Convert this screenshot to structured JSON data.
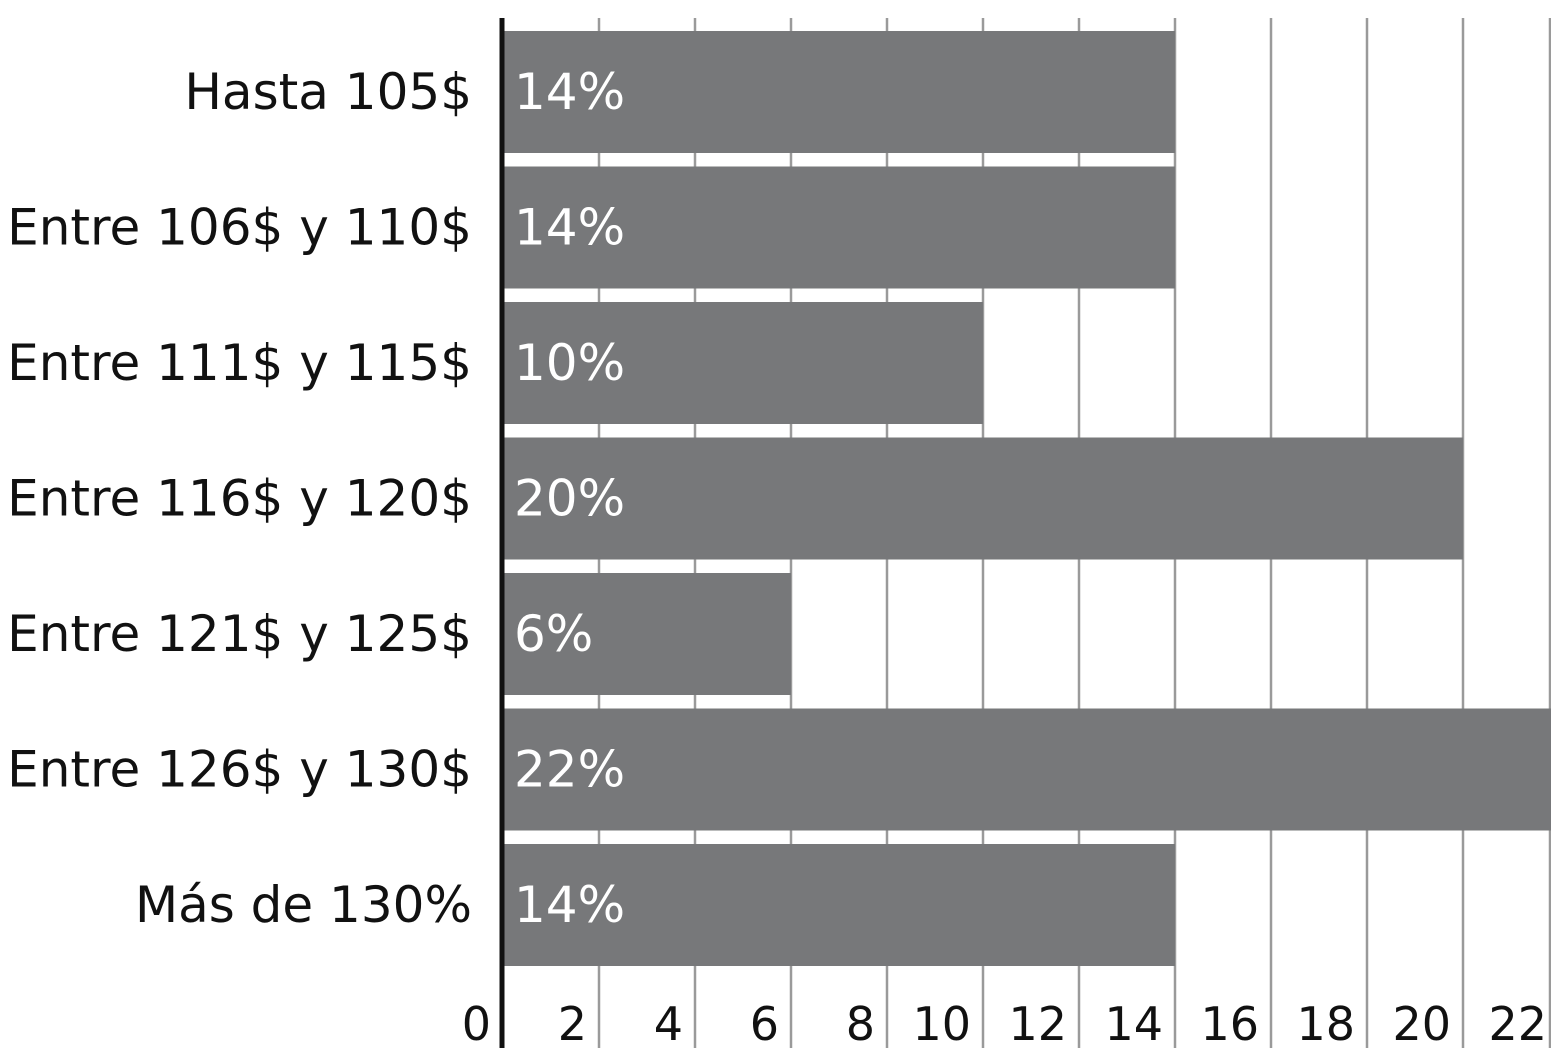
{
  "chart_data": {
    "type": "bar",
    "orientation": "horizontal",
    "categories": [
      "Hasta 105$",
      "Entre 106$ y 110$",
      "Entre 111$ y 115$",
      "Entre 116$ y 120$",
      "Entre 121$ y 125$",
      "Entre 126$ y 130$",
      "Más de 130%"
    ],
    "values": [
      14,
      14,
      10,
      20,
      6,
      22,
      14
    ],
    "value_labels": [
      "14%",
      "14%",
      "10%",
      "20%",
      "6%",
      "22%",
      "14%"
    ],
    "xlim": [
      0,
      22
    ],
    "x_ticks": [
      0,
      2,
      4,
      6,
      8,
      10,
      12,
      14,
      16,
      18,
      20,
      22
    ],
    "x_tick_labels": [
      "0",
      "2",
      "4",
      "6",
      "8",
      "10",
      "12",
      "14",
      "16",
      "18",
      "20",
      "22"
    ],
    "grid": true,
    "colors": {
      "bar": "#77787a",
      "grid": "#9a9a9a",
      "axis": "#111111",
      "bar_text": "#ffffff"
    }
  }
}
